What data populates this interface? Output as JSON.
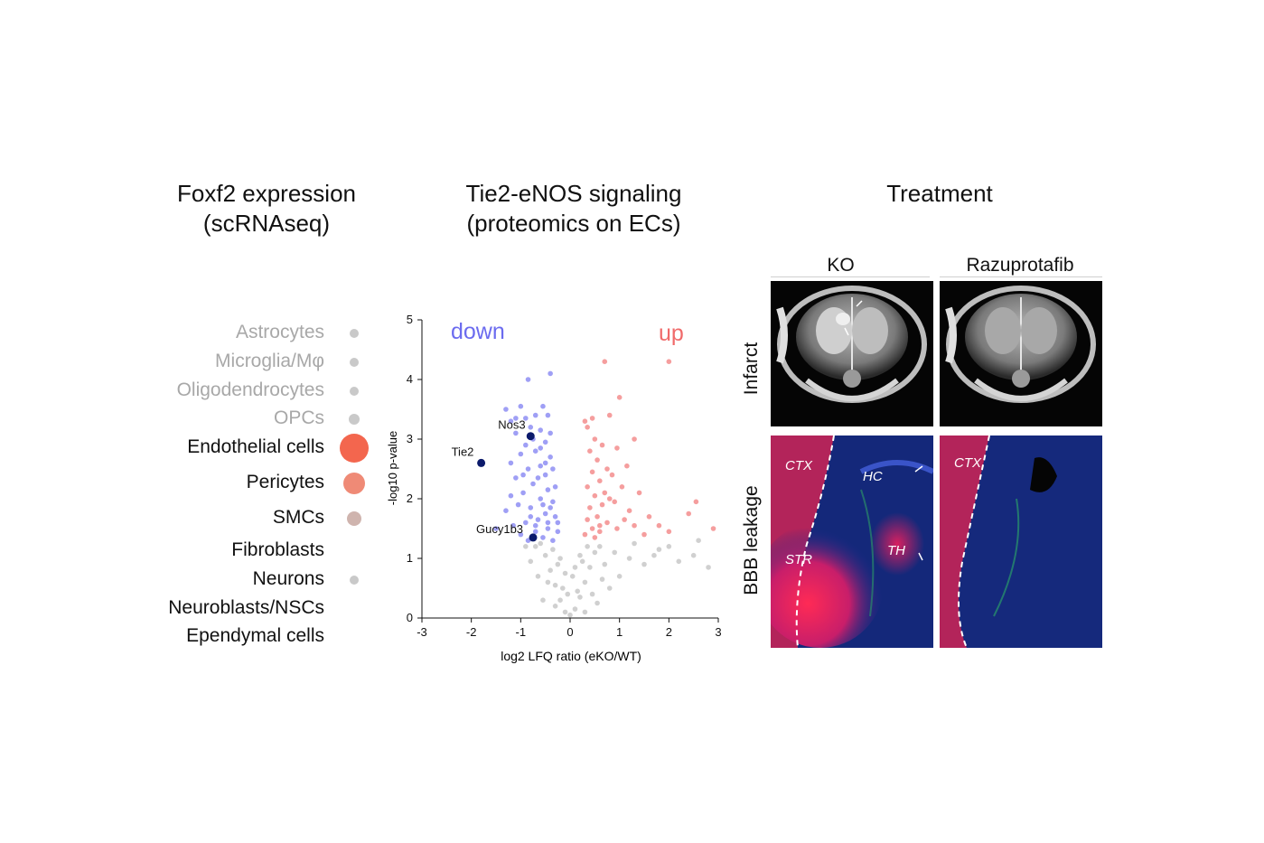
{
  "panels": {
    "a": {
      "title_line1": "Foxf2 expression",
      "title_line2": "(scRNAseq)"
    },
    "b": {
      "title_line1": "Tie2-eNOS signaling",
      "title_line2": "(proteomics on ECs)"
    },
    "c": {
      "title_line1": "Treatment"
    }
  },
  "cell_types": [
    {
      "label": "Astrocytes",
      "style": "grey",
      "dot_size": 1,
      "dot_color": "#c9c9c9"
    },
    {
      "label": "Microglia/Mφ",
      "style": "grey",
      "dot_size": 1,
      "dot_color": "#c9c9c9"
    },
    {
      "label": "Oligodendrocytes",
      "style": "grey",
      "dot_size": 1,
      "dot_color": "#c9c9c9"
    },
    {
      "label": "OPCs",
      "style": "grey",
      "dot_size": 1.2,
      "dot_color": "#c9c9c9"
    },
    {
      "label": "Endothelial cells",
      "style": "dark",
      "dot_size": 3.2,
      "dot_color": "#f3664e"
    },
    {
      "label": "Pericytes",
      "style": "dark",
      "dot_size": 2.4,
      "dot_color": "#ef8a76"
    },
    {
      "label": "SMCs",
      "style": "dark",
      "dot_size": 1.6,
      "dot_color": "#cfb4ae"
    },
    {
      "label": "Fibroblasts",
      "style": "dark",
      "dot_size": 0,
      "dot_color": "#c9c9c9"
    },
    {
      "label": "Neurons",
      "style": "dark",
      "dot_size": 1,
      "dot_color": "#c9c9c9"
    },
    {
      "label": "Neuroblasts/NSCs",
      "style": "dark",
      "dot_size": 0,
      "dot_color": "#c9c9c9"
    },
    {
      "label": "Ependymal cells",
      "style": "dark",
      "dot_size": 0,
      "dot_color": "#c9c9c9"
    }
  ],
  "chart_data": {
    "type": "scatter",
    "xlabel": "log2 LFQ ratio (eKO/WT)",
    "ylabel": "-log10 p-value",
    "xlim": [
      -3,
      3
    ],
    "ylim": [
      0,
      5
    ],
    "xticks": [
      "-3",
      "-2",
      "-1",
      "0",
      "1",
      "2",
      "3"
    ],
    "yticks": [
      "0",
      "1",
      "2",
      "3",
      "4",
      "5"
    ],
    "significance_threshold": 1.3,
    "colors": {
      "down": "#6b6bef",
      "up": "#f06a6a",
      "ns": "#c8c8c8",
      "highlight": "#0b1a6b"
    },
    "annotations": {
      "down": "down",
      "up": "up"
    },
    "highlighted": [
      {
        "name": "Nos3",
        "x": -0.8,
        "y": 3.05
      },
      {
        "name": "Tie2",
        "x": -1.8,
        "y": 2.6
      },
      {
        "name": "Gucy1b3",
        "x": -0.75,
        "y": 1.35
      }
    ],
    "series": [
      {
        "name": "down",
        "points": [
          [
            -1.3,
            3.5
          ],
          [
            -1.0,
            3.55
          ],
          [
            -1.2,
            3.3
          ],
          [
            -0.9,
            3.35
          ],
          [
            -0.7,
            3.4
          ],
          [
            -0.55,
            3.55
          ],
          [
            -0.45,
            3.4
          ],
          [
            -0.8,
            3.2
          ],
          [
            -1.1,
            3.1
          ],
          [
            -0.6,
            3.15
          ],
          [
            -0.9,
            2.9
          ],
          [
            -0.5,
            2.95
          ],
          [
            -0.7,
            2.8
          ],
          [
            -1.0,
            2.75
          ],
          [
            -1.2,
            2.6
          ],
          [
            -0.4,
            2.7
          ],
          [
            -0.6,
            2.55
          ],
          [
            -0.85,
            2.5
          ],
          [
            -1.1,
            2.35
          ],
          [
            -0.5,
            2.4
          ],
          [
            -0.75,
            2.25
          ],
          [
            -0.95,
            2.1
          ],
          [
            -0.45,
            2.15
          ],
          [
            -0.6,
            2.0
          ],
          [
            -0.35,
            1.95
          ],
          [
            -0.8,
            1.85
          ],
          [
            -1.05,
            1.9
          ],
          [
            -0.5,
            1.75
          ],
          [
            -0.65,
            1.65
          ],
          [
            -0.3,
            1.7
          ],
          [
            -0.9,
            1.6
          ],
          [
            -0.45,
            1.5
          ],
          [
            -0.7,
            1.45
          ],
          [
            -0.25,
            1.45
          ],
          [
            -1.0,
            1.4
          ],
          [
            -0.55,
            1.35
          ],
          [
            -0.35,
            1.3
          ],
          [
            -0.85,
            1.3
          ],
          [
            -1.15,
            1.55
          ],
          [
            -0.4,
            3.1
          ],
          [
            -0.65,
            2.35
          ],
          [
            -0.3,
            2.2
          ],
          [
            -0.55,
            1.9
          ],
          [
            -0.8,
            1.7
          ],
          [
            -0.45,
            1.6
          ],
          [
            -1.2,
            2.05
          ],
          [
            -1.3,
            1.8
          ],
          [
            -0.7,
            1.55
          ],
          [
            -0.5,
            2.6
          ],
          [
            -0.35,
            2.5
          ],
          [
            -0.75,
            3.0
          ],
          [
            -0.6,
            2.85
          ],
          [
            -0.4,
            1.85
          ],
          [
            -0.95,
            2.4
          ],
          [
            -0.25,
            1.6
          ],
          [
            -1.1,
            3.35
          ],
          [
            -1.5,
            1.5
          ],
          [
            -0.4,
            4.1
          ],
          [
            -0.85,
            4.0
          ]
        ]
      },
      {
        "name": "up",
        "points": [
          [
            0.3,
            1.4
          ],
          [
            0.45,
            1.5
          ],
          [
            0.6,
            1.45
          ],
          [
            0.35,
            1.65
          ],
          [
            0.55,
            1.7
          ],
          [
            0.75,
            1.6
          ],
          [
            0.4,
            1.85
          ],
          [
            0.65,
            1.9
          ],
          [
            0.5,
            2.05
          ],
          [
            0.8,
            2.0
          ],
          [
            0.35,
            2.2
          ],
          [
            0.6,
            2.3
          ],
          [
            0.45,
            2.45
          ],
          [
            0.75,
            2.5
          ],
          [
            0.55,
            2.65
          ],
          [
            0.4,
            2.8
          ],
          [
            0.65,
            2.9
          ],
          [
            0.5,
            3.0
          ],
          [
            0.35,
            3.2
          ],
          [
            0.45,
            3.35
          ],
          [
            0.95,
            1.5
          ],
          [
            1.1,
            1.65
          ],
          [
            1.3,
            1.55
          ],
          [
            1.5,
            1.4
          ],
          [
            1.2,
            1.8
          ],
          [
            0.9,
            1.95
          ],
          [
            1.05,
            2.2
          ],
          [
            0.85,
            2.4
          ],
          [
            1.4,
            2.1
          ],
          [
            1.15,
            2.55
          ],
          [
            0.95,
            2.85
          ],
          [
            1.6,
            1.7
          ],
          [
            1.8,
            1.55
          ],
          [
            2.0,
            1.45
          ],
          [
            2.4,
            1.75
          ],
          [
            2.55,
            1.95
          ],
          [
            2.9,
            1.5
          ],
          [
            1.3,
            3.0
          ],
          [
            0.8,
            3.4
          ],
          [
            0.7,
            4.3
          ],
          [
            1.0,
            3.7
          ],
          [
            2.0,
            4.3
          ],
          [
            0.3,
            3.3
          ],
          [
            0.5,
            1.35
          ],
          [
            0.7,
            2.1
          ],
          [
            0.6,
            1.55
          ]
        ]
      },
      {
        "name": "ns",
        "points": [
          [
            -0.1,
            0.1
          ],
          [
            0.1,
            0.15
          ],
          [
            -0.2,
            0.3
          ],
          [
            0.2,
            0.35
          ],
          [
            -0.3,
            0.55
          ],
          [
            0.3,
            0.6
          ],
          [
            -0.15,
            0.5
          ],
          [
            0.15,
            0.45
          ],
          [
            -0.4,
            0.8
          ],
          [
            0.4,
            0.85
          ],
          [
            -0.25,
            0.9
          ],
          [
            0.25,
            0.95
          ],
          [
            -0.5,
            1.05
          ],
          [
            0.5,
            1.1
          ],
          [
            -0.35,
            1.15
          ],
          [
            0.35,
            1.2
          ],
          [
            -0.6,
            1.25
          ],
          [
            0.6,
            1.2
          ],
          [
            -0.05,
            0.4
          ],
          [
            0.05,
            0.7
          ],
          [
            -0.45,
            0.6
          ],
          [
            0.45,
            0.4
          ],
          [
            -0.2,
            1.0
          ],
          [
            0.2,
            1.05
          ],
          [
            -0.7,
            1.2
          ],
          [
            0.7,
            0.9
          ],
          [
            0.9,
            1.1
          ],
          [
            1.2,
            1.0
          ],
          [
            1.5,
            0.9
          ],
          [
            1.8,
            1.15
          ],
          [
            2.2,
            0.95
          ],
          [
            2.5,
            1.05
          ],
          [
            2.8,
            0.85
          ],
          [
            1.0,
            0.7
          ],
          [
            0.8,
            0.5
          ],
          [
            -0.9,
            1.2
          ],
          [
            -0.8,
            0.95
          ],
          [
            -0.55,
            0.3
          ],
          [
            0.55,
            0.25
          ],
          [
            -0.3,
            0.2
          ],
          [
            0.3,
            0.1
          ],
          [
            0.0,
            0.05
          ],
          [
            -0.1,
            0.75
          ],
          [
            0.1,
            0.85
          ],
          [
            1.3,
            1.25
          ],
          [
            2.0,
            1.2
          ],
          [
            2.6,
            1.3
          ],
          [
            1.7,
            1.05
          ],
          [
            -0.65,
            0.7
          ],
          [
            0.65,
            0.65
          ]
        ]
      }
    ]
  },
  "treatment": {
    "columns": [
      "KO",
      "Razuprotafib"
    ],
    "rows": [
      "Infarct",
      "BBB leakage"
    ],
    "region_labels_ko": [
      "CTX",
      "HC",
      "STR",
      "TH"
    ],
    "region_labels_treated": [
      "CTX"
    ]
  }
}
